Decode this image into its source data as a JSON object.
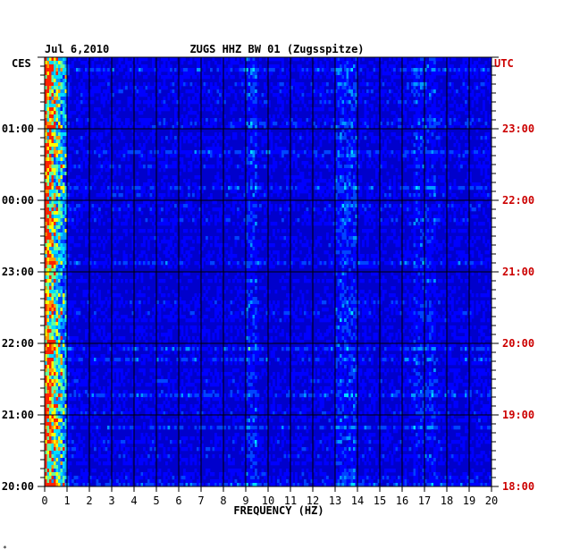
{
  "chart_data": {
    "type": "heatmap",
    "date": "Jul 6,2010",
    "title": "ZUGS HHZ BW 01 (Zugsspitze)",
    "xlabel": "FREQUENCY (HZ)",
    "xlim": [
      0,
      20
    ],
    "x_ticks": [
      "0",
      "1",
      "2",
      "3",
      "4",
      "5",
      "6",
      "7",
      "8",
      "9",
      "10",
      "11",
      "12",
      "13",
      "14",
      "15",
      "16",
      "17",
      "18",
      "19",
      "20"
    ],
    "left_axis_label": "CES",
    "right_axis_label": "UTC",
    "left_time_ticks": [
      "01:00",
      "00:00",
      "23:00",
      "22:00",
      "21:00",
      "20:00"
    ],
    "right_time_ticks": [
      "23:00",
      "22:00",
      "21:00",
      "20:00",
      "19:00",
      "18:00"
    ],
    "colors": {
      "background": "#0000cc",
      "low": "#0000ff",
      "mid": "#00ccff",
      "high": "#ffff00",
      "peak": "#ff3300",
      "utc_label": "#cc0000"
    },
    "grid": true,
    "energy_bands_hz": [
      {
        "from": 0,
        "to": 1,
        "level": 0.9
      },
      {
        "from": 9,
        "to": 9.5,
        "level": 0.55
      },
      {
        "from": 13,
        "to": 14,
        "level": 0.6
      },
      {
        "from": 16.5,
        "to": 17.5,
        "level": 0.45
      }
    ]
  },
  "footer_mark": "*"
}
